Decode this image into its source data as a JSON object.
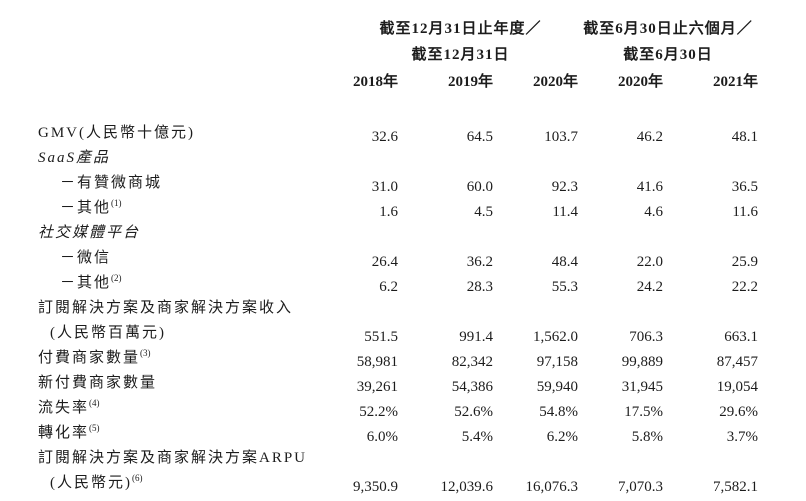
{
  "page": {
    "background_color": "#ffffff",
    "text_color": "#1c1c1c",
    "description": "Financial operating metrics table (Traditional Chinese)"
  },
  "table": {
    "header": {
      "groups": [
        {
          "line1": "截至12月31日止年度／",
          "line2": "截至12月31日",
          "years": [
            "2018年",
            "2019年",
            "2020年"
          ]
        },
        {
          "line1": "截至6月30日止六個月／",
          "line2": "截至6月30日",
          "years": [
            "2020年",
            "2021年"
          ]
        }
      ]
    },
    "rows": [
      {
        "label": "GMV(人民幣十億元)",
        "style": "normal",
        "values": [
          "32.6",
          "64.5",
          "103.7",
          "46.2",
          "48.1"
        ]
      },
      {
        "label": "SaaS產品",
        "style": "italic",
        "values": [
          "",
          "",
          "",
          "",
          ""
        ]
      },
      {
        "label": "－有贊微商城",
        "style": "indent",
        "values": [
          "31.0",
          "60.0",
          "92.3",
          "41.6",
          "36.5"
        ]
      },
      {
        "label": "－其他",
        "sup": "(1)",
        "style": "indent",
        "values": [
          "1.6",
          "4.5",
          "11.4",
          "4.6",
          "11.6"
        ]
      },
      {
        "label": "社交媒體平台",
        "style": "italic",
        "values": [
          "",
          "",
          "",
          "",
          ""
        ]
      },
      {
        "label": "－微信",
        "style": "indent",
        "values": [
          "26.4",
          "36.2",
          "48.4",
          "22.0",
          "25.9"
        ]
      },
      {
        "label": "－其他",
        "sup": "(2)",
        "style": "indent",
        "values": [
          "6.2",
          "28.3",
          "55.3",
          "24.2",
          "22.2"
        ]
      },
      {
        "label": "訂閱解決方案及商家解決方案收入",
        "label2": "(人民幣百萬元)",
        "style": "normal",
        "values": [
          "551.5",
          "991.4",
          "1,562.0",
          "706.3",
          "663.1"
        ]
      },
      {
        "label": "付費商家數量",
        "sup": "(3)",
        "style": "normal",
        "values": [
          "58,981",
          "82,342",
          "97,158",
          "99,889",
          "87,457"
        ]
      },
      {
        "label": "新付費商家數量",
        "style": "normal",
        "values": [
          "39,261",
          "54,386",
          "59,940",
          "31,945",
          "19,054"
        ]
      },
      {
        "label": "流失率",
        "sup": "(4)",
        "style": "normal",
        "values": [
          "52.2%",
          "52.6%",
          "54.8%",
          "17.5%",
          "29.6%"
        ]
      },
      {
        "label": "轉化率",
        "sup": "(5)",
        "style": "normal",
        "values": [
          "6.0%",
          "5.4%",
          "6.2%",
          "5.8%",
          "3.7%"
        ]
      },
      {
        "label": "訂閱解決方案及商家解決方案ARPU",
        "label2": "(人民幣元)",
        "sup2": "(6)",
        "style": "normal",
        "values": [
          "9,350.9",
          "12,039.6",
          "16,076.3",
          "7,070.3",
          "7,582.1"
        ]
      }
    ]
  }
}
